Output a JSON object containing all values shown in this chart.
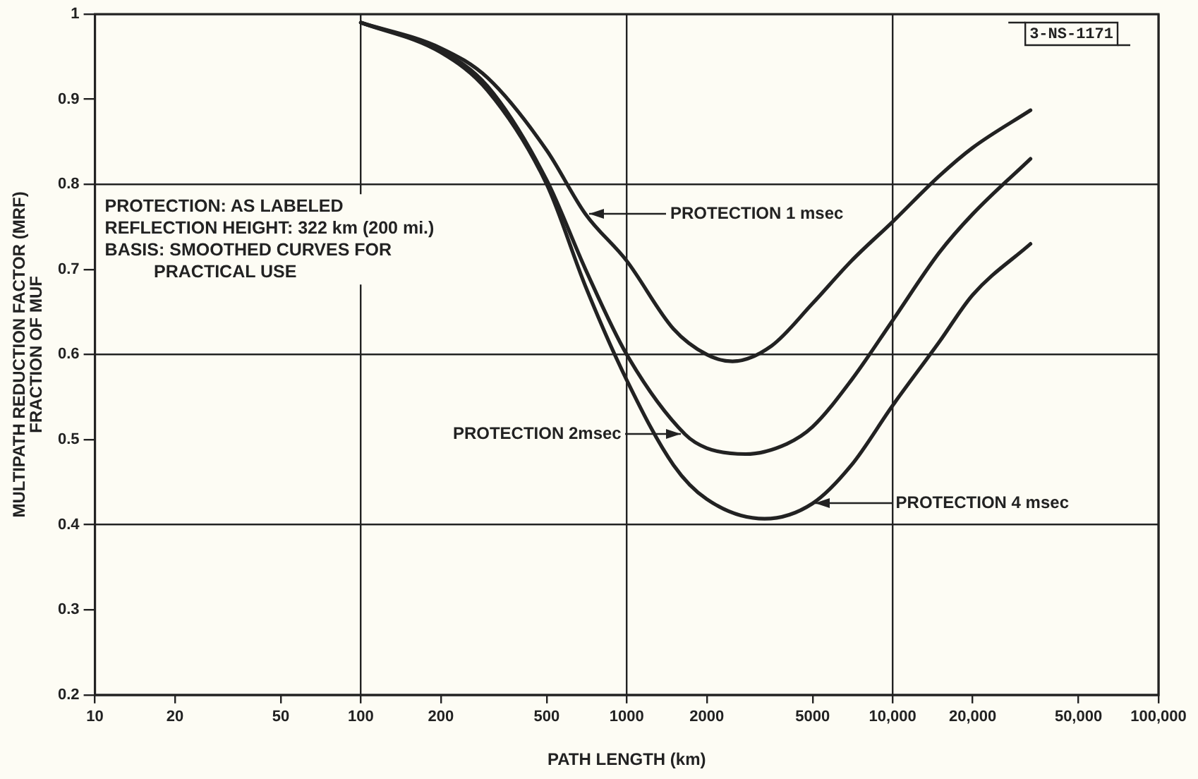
{
  "chart_data": {
    "type": "line",
    "xlabel": "PATH LENGTH (km)",
    "ylabel": "MULTIPATH REDUCTION FACTOR (MRF)\nFRACTION OF MUF",
    "log": "x",
    "grid": true,
    "legend": false,
    "marker": "none",
    "line_style": "solid",
    "xlim": [
      10,
      100000
    ],
    "ylim": [
      0.2,
      1
    ],
    "xticks": [
      10,
      20,
      50,
      100,
      200,
      500,
      1000,
      2000,
      5000,
      {
        "value": 10000,
        "label": "10,000"
      },
      {
        "value": 20000,
        "label": "20,000"
      },
      {
        "value": 50000,
        "label": "50,000"
      },
      {
        "value": 100000,
        "label": "100,000"
      }
    ],
    "yticks": [
      0.2,
      0.3,
      0.4,
      0.5,
      0.6,
      0.7,
      0.8,
      0.9,
      1
    ],
    "series": [
      {
        "color": "#222222",
        "x": [
          100,
          200,
          300,
          500,
          700,
          1000,
          1500,
          2000,
          2500,
          3500,
          5000,
          7000,
          10000,
          15000,
          20000,
          33000
        ],
        "values": [
          0.99,
          0.96,
          0.925,
          0.84,
          0.765,
          0.71,
          0.63,
          0.6,
          0.592,
          0.61,
          0.66,
          0.71,
          0.756,
          0.81,
          0.843,
          0.887
        ]
      },
      {
        "color": "#222222",
        "x": [
          100,
          200,
          300,
          500,
          700,
          1000,
          1660,
          2000,
          2800,
          4000,
          5000,
          7000,
          10000,
          15000,
          20000,
          33000
        ],
        "values": [
          0.99,
          0.957,
          0.915,
          0.805,
          0.7,
          0.6,
          0.506,
          0.49,
          0.483,
          0.495,
          0.515,
          0.57,
          0.64,
          0.72,
          0.765,
          0.83
        ]
      },
      {
        "color": "#222222",
        "x": [
          100,
          200,
          300,
          500,
          700,
          1000,
          1500,
          2000,
          3300,
          5000,
          7000,
          10000,
          15000,
          20000,
          33000
        ],
        "values": [
          0.99,
          0.955,
          0.91,
          0.8,
          0.68,
          0.57,
          0.47,
          0.43,
          0.407,
          0.425,
          0.47,
          0.54,
          0.615,
          0.67,
          0.73
        ]
      }
    ],
    "annotations": [
      "PROTECTION 1 msec",
      "PROTECTION 2msec",
      "PROTECTION 4 msec",
      "PROTECTION: AS LABELED\nREFLECTION HEIGHT: 322 km (200 mi.)\nBASIS: SMOOTHED CURVES FOR\n          PRACTICAL USE",
      "3-NS-1171"
    ]
  }
}
